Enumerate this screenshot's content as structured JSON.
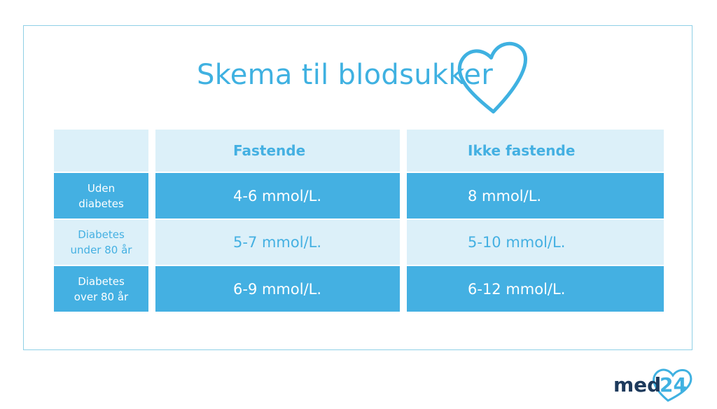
{
  "title": "Skema til blodsukker",
  "colors": {
    "accent": "#44b0e2",
    "light": "#dcf0f9",
    "logo_dark": "#1d3a5c"
  },
  "table": {
    "headers": [
      "",
      "Fastende",
      "Ikke fastende"
    ],
    "rows": [
      {
        "label": "Uden\ndiabetes",
        "fastende": "4-6 mmol/L.",
        "ikke_fastende": "8 mmol/L."
      },
      {
        "label": "Diabetes\nunder 80 år",
        "fastende": "5-7 mmol/L.",
        "ikke_fastende": "5-10 mmol/L."
      },
      {
        "label": "Diabetes\nover 80 år",
        "fastende": "6-9 mmol/L.",
        "ikke_fastende": "6-12 mmol/L."
      }
    ]
  },
  "logo": {
    "text_part1": "med",
    "text_part2": "24",
    "icon": "heart-icon"
  }
}
